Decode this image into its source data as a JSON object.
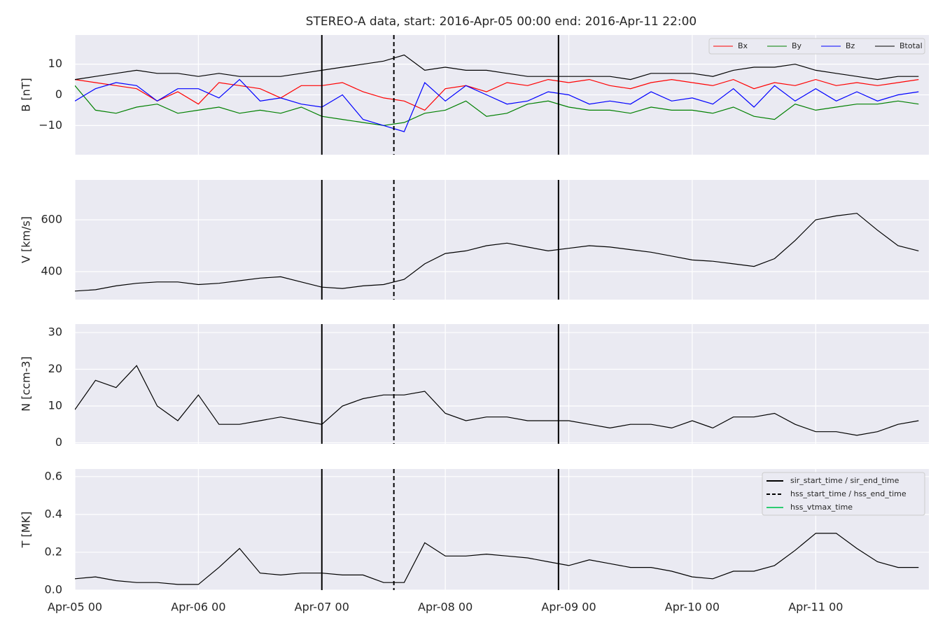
{
  "chart_data": {
    "type": "line",
    "title": "STEREO-A data, start: 2016-Apr-05 00:00  end: 2016-Apr-11 22:00",
    "x": [
      "2016-04-05T00:00",
      "2016-04-05T04:00",
      "2016-04-05T08:00",
      "2016-04-05T12:00",
      "2016-04-05T16:00",
      "2016-04-05T20:00",
      "2016-04-06T00:00",
      "2016-04-06T04:00",
      "2016-04-06T08:00",
      "2016-04-06T12:00",
      "2016-04-06T16:00",
      "2016-04-06T20:00",
      "2016-04-07T00:00",
      "2016-04-07T04:00",
      "2016-04-07T08:00",
      "2016-04-07T12:00",
      "2016-04-07T16:00",
      "2016-04-07T20:00",
      "2016-04-08T00:00",
      "2016-04-08T04:00",
      "2016-04-08T08:00",
      "2016-04-08T12:00",
      "2016-04-08T16:00",
      "2016-04-08T20:00",
      "2016-04-09T00:00",
      "2016-04-09T04:00",
      "2016-04-09T08:00",
      "2016-04-09T12:00",
      "2016-04-09T16:00",
      "2016-04-09T20:00",
      "2016-04-10T00:00",
      "2016-04-10T04:00",
      "2016-04-10T08:00",
      "2016-04-10T12:00",
      "2016-04-10T16:00",
      "2016-04-10T20:00",
      "2016-04-11T00:00",
      "2016-04-11T04:00",
      "2016-04-11T08:00",
      "2016-04-11T12:00",
      "2016-04-11T16:00",
      "2016-04-11T20:00"
    ],
    "xlim": [
      "2016-04-05T00:00",
      "2016-04-11T22:00"
    ],
    "xticks": [
      {
        "value": "2016-04-05T00:00",
        "label": "Apr-05 00"
      },
      {
        "value": "2016-04-06T00:00",
        "label": "Apr-06 00"
      },
      {
        "value": "2016-04-07T00:00",
        "label": "Apr-07 00"
      },
      {
        "value": "2016-04-08T00:00",
        "label": "Apr-08 00"
      },
      {
        "value": "2016-04-09T00:00",
        "label": "Apr-09 00"
      },
      {
        "value": "2016-04-10T00:00",
        "label": "Apr-10 00"
      },
      {
        "value": "2016-04-11T00:00",
        "label": "Apr-11 00"
      }
    ],
    "grid": true,
    "panels": [
      {
        "ylabel": "B [nT]",
        "ylim": [
          -19.5,
          19.5
        ],
        "yticks": [
          {
            "value": -10,
            "label": "−10"
          },
          0,
          10
        ],
        "legend": "upper right",
        "series": [
          {
            "name": "Bx",
            "color": "#ff0000",
            "values": [
              5,
              4,
              3,
              2,
              -2,
              1,
              -3,
              4,
              3,
              2,
              -1,
              3,
              3,
              4,
              1,
              -1,
              -2,
              -5,
              2,
              3,
              1,
              4,
              3,
              5,
              4,
              5,
              3,
              2,
              4,
              5,
              4,
              3,
              5,
              2,
              4,
              3,
              5,
              3,
              4,
              3,
              4,
              5
            ]
          },
          {
            "name": "By",
            "color": "#008000",
            "values": [
              3,
              -5,
              -6,
              -4,
              -3,
              -6,
              -5,
              -4,
              -6,
              -5,
              -6,
              -4,
              -7,
              -8,
              -9,
              -10,
              -9,
              -6,
              -5,
              -2,
              -7,
              -6,
              -3,
              -2,
              -4,
              -5,
              -5,
              -6,
              -4,
              -5,
              -5,
              -6,
              -4,
              -7,
              -8,
              -3,
              -5,
              -4,
              -3,
              -3,
              -2,
              -3
            ]
          },
          {
            "name": "Bz",
            "color": "#0000ff",
            "values": [
              -2,
              2,
              4,
              3,
              -2,
              2,
              2,
              -1,
              5,
              -2,
              -1,
              -3,
              -4,
              0,
              -8,
              -10,
              -12,
              4,
              -2,
              3,
              0,
              -3,
              -2,
              1,
              0,
              -3,
              -2,
              -3,
              1,
              -2,
              -1,
              -3,
              2,
              -4,
              3,
              -2,
              2,
              -2,
              1,
              -2,
              0,
              1
            ]
          },
          {
            "name": "Btotal",
            "color": "#000000",
            "values": [
              5,
              6,
              7,
              8,
              7,
              7,
              6,
              7,
              6,
              6,
              6,
              7,
              8,
              9,
              10,
              11,
              13,
              8,
              9,
              8,
              8,
              7,
              6,
              6,
              6,
              6,
              6,
              5,
              7,
              7,
              7,
              6,
              8,
              9,
              9,
              10,
              8,
              7,
              6,
              5,
              6,
              6
            ]
          }
        ]
      },
      {
        "ylabel": "V [km/s]",
        "ylim": [
          292,
          754
        ],
        "yticks": [
          400,
          600
        ],
        "series": [
          {
            "color": "#000000",
            "values": [
              325,
              330,
              345,
              355,
              360,
              360,
              350,
              355,
              365,
              375,
              380,
              360,
              340,
              335,
              345,
              350,
              370,
              430,
              470,
              480,
              500,
              510,
              495,
              480,
              490,
              500,
              495,
              485,
              475,
              460,
              445,
              440,
              430,
              420,
              450,
              520,
              600,
              615,
              625,
              560,
              500,
              480
            ]
          }
        ]
      },
      {
        "ylabel": "N [ccm-3]",
        "ylim": [
          -0.3,
          32.3
        ],
        "yticks": [
          0,
          10,
          20,
          30
        ],
        "series": [
          {
            "color": "#000000",
            "values": [
              9,
              17,
              15,
              21,
              10,
              6,
              13,
              5,
              5,
              6,
              7,
              6,
              5,
              10,
              12,
              13,
              13,
              14,
              8,
              6,
              7,
              7,
              6,
              6,
              6,
              5,
              4,
              5,
              5,
              4,
              6,
              4,
              7,
              7,
              8,
              5,
              3,
              3,
              2,
              3,
              5,
              6
            ]
          }
        ]
      },
      {
        "ylabel": "T [MK]",
        "ylim": [
          0,
          0.64
        ],
        "yticks": [
          {
            "value": 0,
            "label": "0.0"
          },
          0.2,
          0.4,
          0.6
        ],
        "series": [
          {
            "color": "#000000",
            "values": [
              0.06,
              0.07,
              0.05,
              0.04,
              0.04,
              0.03,
              0.03,
              0.12,
              0.22,
              0.09,
              0.08,
              0.09,
              0.09,
              0.08,
              0.08,
              0.04,
              0.04,
              0.25,
              0.18,
              0.18,
              0.19,
              0.18,
              0.17,
              0.15,
              0.13,
              0.16,
              0.14,
              0.12,
              0.12,
              0.1,
              0.07,
              0.06,
              0.1,
              0.1,
              0.13,
              0.21,
              0.3,
              0.3,
              0.22,
              0.15,
              0.12,
              0.12
            ]
          }
        ]
      }
    ],
    "events_legend": "upper right",
    "events": [
      {
        "name": "sir_start_time / sir_end_time",
        "color": "#000000",
        "dashed": false,
        "times": [
          "2016-04-07T00:00",
          "2016-04-08T22:00"
        ]
      },
      {
        "name": "hss_start_time / hss_end_time",
        "color": "#000000",
        "dashed": true,
        "times": [
          "2016-04-07T14:00"
        ]
      },
      {
        "name": "hss_vtmax_time",
        "color": "#2ecc71",
        "dashed": false
      }
    ]
  }
}
